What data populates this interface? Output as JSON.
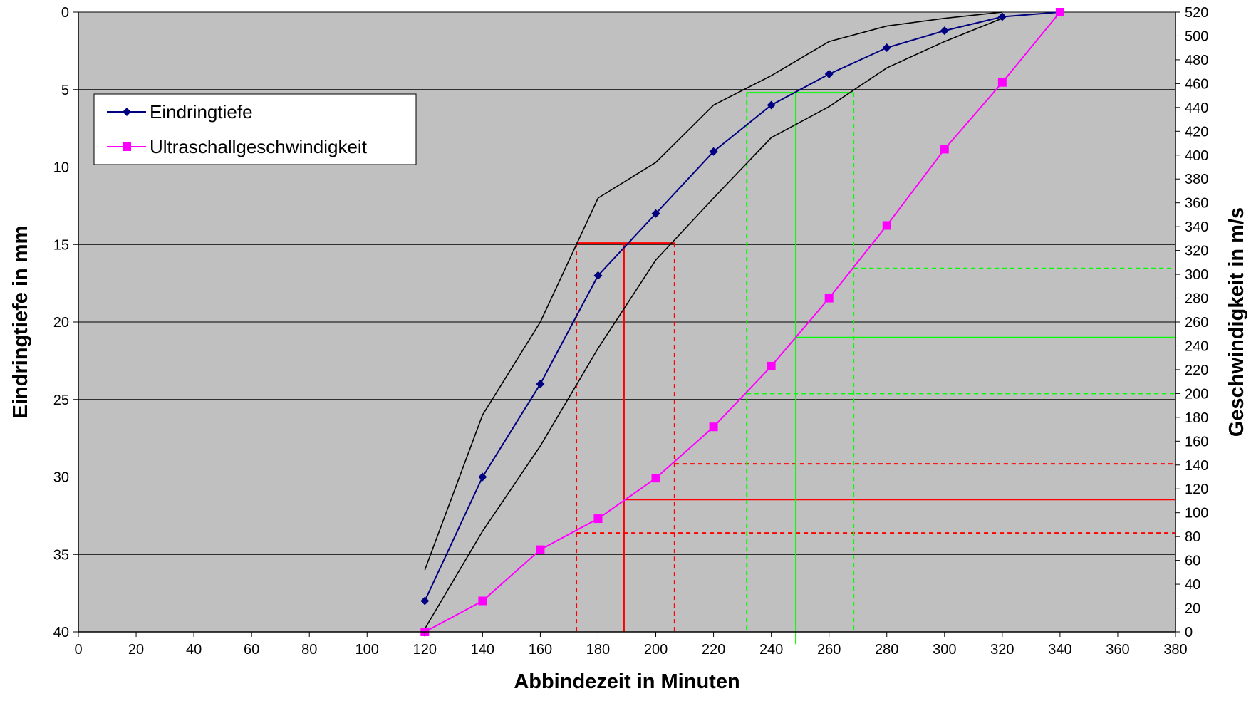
{
  "chart_data": {
    "type": "line",
    "xlabel": "Abbindezeit in Minuten",
    "ylabel_left": "Eindringtiefe in mm",
    "ylabel_right": "Geschwindigkeit in m/s",
    "xlim": [
      0,
      380
    ],
    "ylim_left": [
      0,
      40
    ],
    "ylim_left_inverted": true,
    "ylim_right": [
      0,
      520
    ],
    "x_ticks": [
      "0",
      "20",
      "40",
      "60",
      "80",
      "100",
      "120",
      "140",
      "160",
      "180",
      "200",
      "220",
      "240",
      "260",
      "280",
      "300",
      "320",
      "340",
      "360",
      "380"
    ],
    "y_left_ticks": [
      "0",
      "5",
      "10",
      "15",
      "20",
      "25",
      "30",
      "35",
      "40"
    ],
    "y_right_ticks": [
      "0",
      "20",
      "40",
      "60",
      "80",
      "100",
      "120",
      "140",
      "160",
      "180",
      "200",
      "220",
      "240",
      "260",
      "280",
      "300",
      "320",
      "340",
      "360",
      "380",
      "400",
      "420",
      "440",
      "460",
      "480",
      "500",
      "520"
    ],
    "grid": "horizontal",
    "plot_background": "#c0c0c0",
    "legend_position": "top-left",
    "series": [
      {
        "name": "Eindringtiefe",
        "axis": "left",
        "color": "#000080",
        "marker": "diamond",
        "x": [
          120,
          140,
          160,
          180,
          200,
          220,
          240,
          260,
          280,
          300,
          320,
          340
        ],
        "y": [
          38,
          30,
          24,
          17,
          13,
          9,
          6,
          4,
          2.3,
          1.2,
          0.3,
          0
        ]
      },
      {
        "name": "Ultraschallgeschwindigkeit",
        "axis": "right",
        "color": "#ff00ff",
        "marker": "square",
        "x": [
          120,
          140,
          160,
          180,
          200,
          220,
          240,
          260,
          280,
          300,
          320,
          340
        ],
        "y": [
          0,
          26,
          69,
          95,
          129,
          172,
          223,
          280,
          341,
          405,
          461,
          520
        ]
      }
    ],
    "envelope_upper": {
      "axis": "left",
      "color": "#000000",
      "x": [
        120,
        140,
        160,
        180,
        200,
        220,
        240,
        260,
        280,
        300,
        320
      ],
      "y": [
        36,
        26,
        20,
        12,
        9.7,
        6,
        4.1,
        1.9,
        0.9,
        0.4,
        0
      ]
    },
    "envelope_lower": {
      "axis": "left",
      "color": "#000000",
      "x": [
        120,
        140,
        160,
        180,
        200,
        220,
        240,
        260,
        280,
        300,
        320
      ],
      "y": [
        39.8,
        33.5,
        28,
        21.7,
        16,
        12,
        8.1,
        6.1,
        3.6,
        1.9,
        0.4
      ]
    },
    "reference_lines": [
      {
        "color": "#ff0000",
        "style": "solid",
        "orientation": "horizontal",
        "axis": "left",
        "value": 14.9,
        "from_x": 172.5,
        "to_x": 206.5
      },
      {
        "color": "#ff0000",
        "style": "solid",
        "orientation": "vertical",
        "x": 189,
        "from_left": 14.9,
        "to_left": 40
      },
      {
        "color": "#ff0000",
        "style": "solid",
        "orientation": "horizontal",
        "axis": "right",
        "value": 111,
        "from_x": 189,
        "to_x": 380
      },
      {
        "color": "#ff0000",
        "style": "dashed",
        "orientation": "vertical",
        "x": 172.5,
        "from_left": 14.9,
        "to_left": 40
      },
      {
        "color": "#ff0000",
        "style": "dashed",
        "orientation": "vertical",
        "x": 206.5,
        "from_left": 14.9,
        "to_left": 40
      },
      {
        "color": "#ff0000",
        "style": "dashed",
        "orientation": "horizontal",
        "axis": "right",
        "value": 83,
        "from_x": 172.5,
        "to_x": 380
      },
      {
        "color": "#ff0000",
        "style": "dashed",
        "orientation": "horizontal",
        "axis": "right",
        "value": 141,
        "from_x": 206.5,
        "to_x": 380
      },
      {
        "color": "#00ff00",
        "style": "solid",
        "orientation": "horizontal",
        "axis": "left",
        "value": 5.2,
        "from_x": 231.5,
        "to_x": 268.5
      },
      {
        "color": "#00ff00",
        "style": "solid",
        "orientation": "vertical",
        "x": 248.5,
        "from_left": 5.2,
        "to_left": 40.8
      },
      {
        "color": "#00ff00",
        "style": "solid",
        "orientation": "horizontal",
        "axis": "right",
        "value": 247,
        "from_x": 248.5,
        "to_x": 380
      },
      {
        "color": "#00ff00",
        "style": "dashed",
        "orientation": "vertical",
        "x": 231.5,
        "from_left": 5.2,
        "to_left": 40
      },
      {
        "color": "#00ff00",
        "style": "dashed",
        "orientation": "vertical",
        "x": 268.5,
        "from_left": 5.2,
        "to_left": 40
      },
      {
        "color": "#00ff00",
        "style": "dashed",
        "orientation": "horizontal",
        "axis": "right",
        "value": 200,
        "from_x": 231.5,
        "to_x": 380
      },
      {
        "color": "#00ff00",
        "style": "dashed",
        "orientation": "horizontal",
        "axis": "right",
        "value": 305,
        "from_x": 268.5,
        "to_x": 380
      }
    ]
  }
}
